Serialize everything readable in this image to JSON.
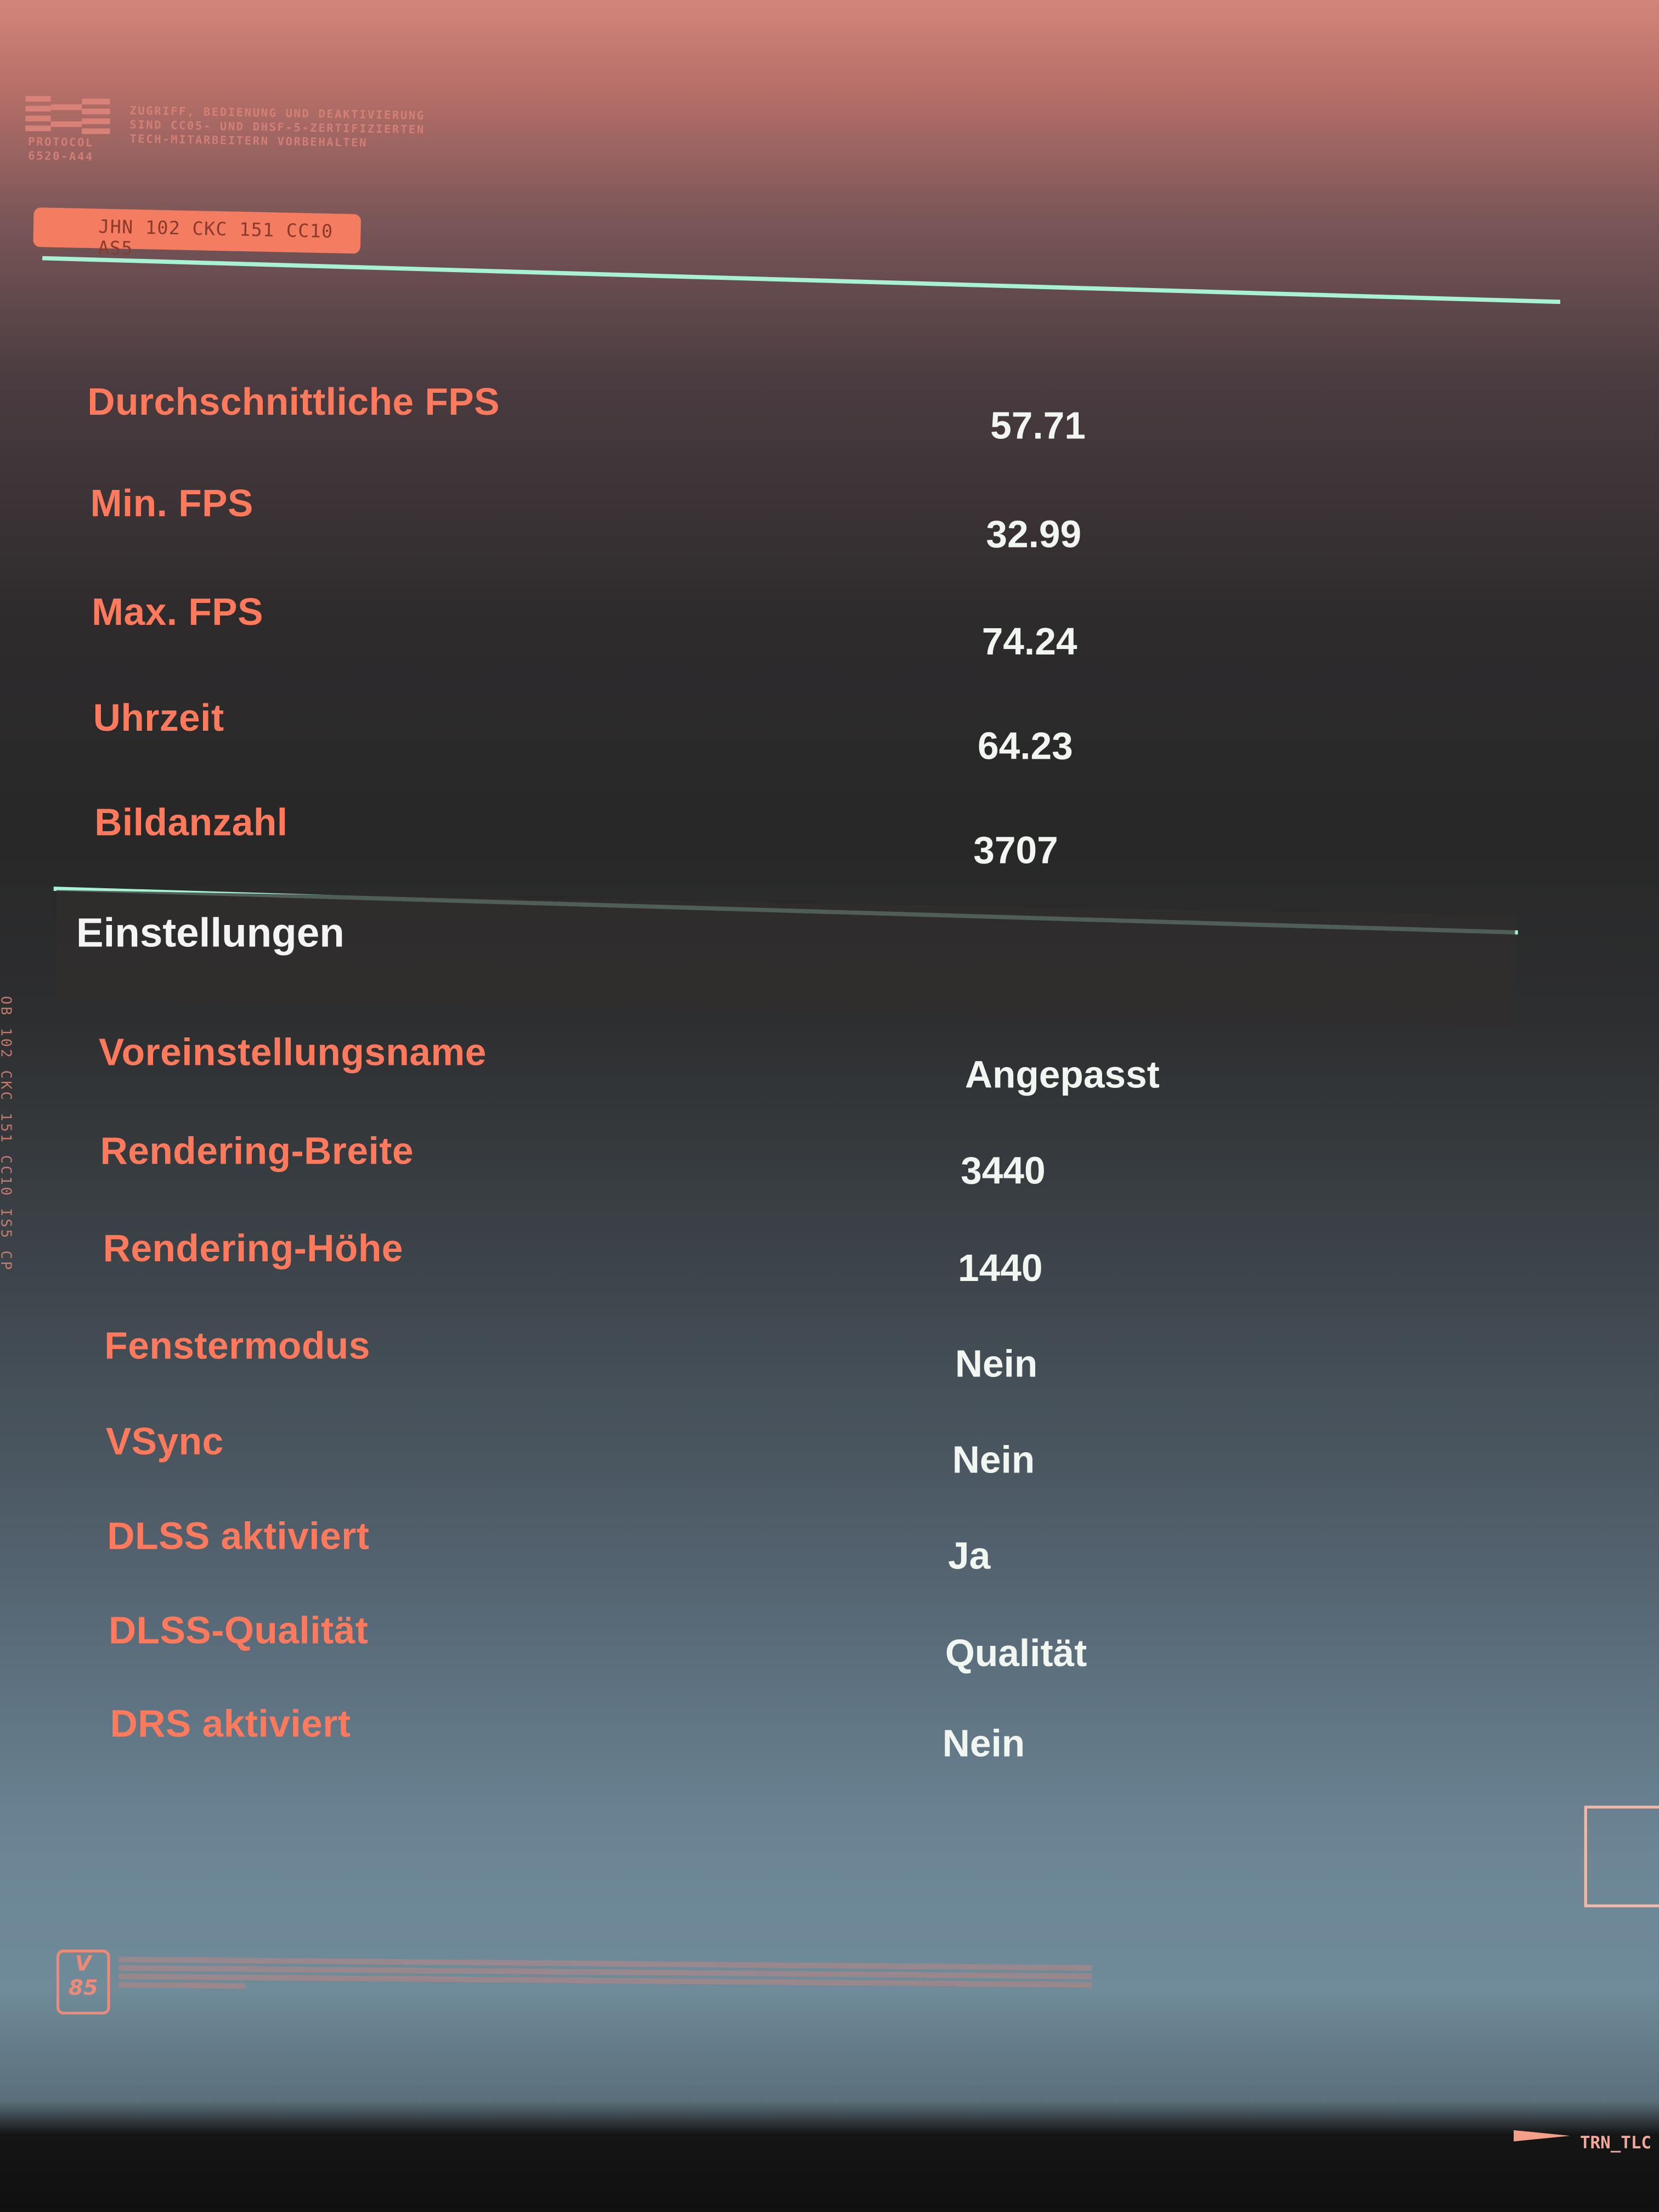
{
  "header": {
    "logo": {
      "name": "PROTOCOL",
      "code": "6520-A44"
    },
    "notice_lines": [
      "ZUGRIFF, BEDIENUNG UND DEAKTIVIERUNG",
      "SIND CC05- UND DHSF-5-ZERTIFIZIERTEN",
      "TECH-MITARBEITERN VORBEHALTEN"
    ],
    "badge": "JHN 102 CKC 151 CC10 AS5"
  },
  "side_code": "OB 102 CKC 151 CC10 IS5 CP",
  "results": [
    {
      "label": "Durchschnittliche FPS",
      "value": "57.71"
    },
    {
      "label": "Min. FPS",
      "value": "32.99"
    },
    {
      "label": "Max. FPS",
      "value": "74.24"
    },
    {
      "label": "Uhrzeit",
      "value": "64.23"
    },
    {
      "label": "Bildanzahl",
      "value": "3707"
    }
  ],
  "settings": {
    "title": "Einstellungen",
    "rows": [
      {
        "label": "Voreinstellungsname",
        "value": "Angepasst"
      },
      {
        "label": "Rendering-Breite",
        "value": "3440"
      },
      {
        "label": "Rendering-Höhe",
        "value": "1440"
      },
      {
        "label": "Fenstermodus",
        "value": "Nein"
      },
      {
        "label": "VSync",
        "value": "Nein"
      },
      {
        "label": "DLSS aktiviert",
        "value": "Ja"
      },
      {
        "label": "DLSS-Qualität",
        "value": "Qualität"
      },
      {
        "label": "DRS aktiviert",
        "value": "Nein"
      }
    ]
  },
  "footer": {
    "version_badge": {
      "letter": "V",
      "number": "85"
    },
    "code": "TRN_TLC"
  },
  "colors": {
    "label": "#ff7a5c",
    "value": "#f2f6f0",
    "divider": "#9ff0d0",
    "accent": "#f47c60"
  }
}
